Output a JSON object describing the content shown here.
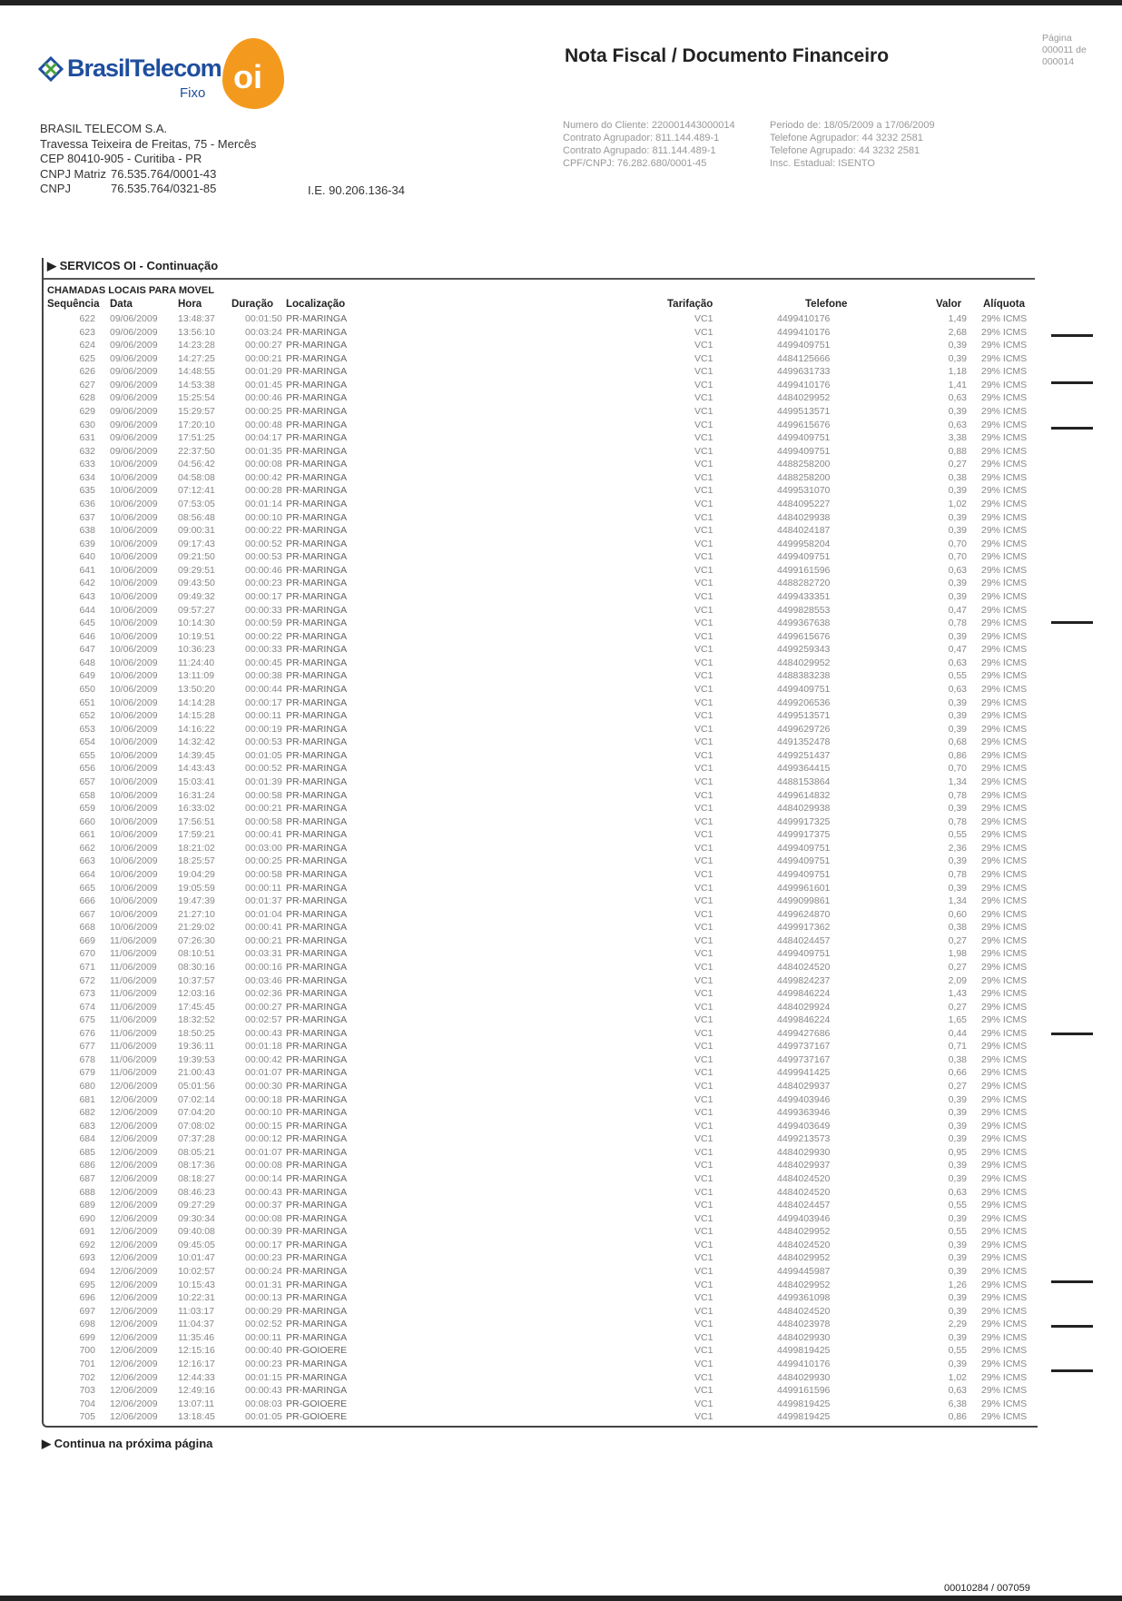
{
  "header": {
    "logo_brand": "BrasilTelecom",
    "logo_sub": "Fixo",
    "logo_oi": "oi",
    "title": "Nota Fiscal / Documento Financeiro",
    "page_label": "Página",
    "page_value": "000011 de 000014"
  },
  "company": {
    "name": "BRASIL TELECOM S.A.",
    "address": "Travessa Teixeira de Freitas, 75 - Mercês",
    "cep": "CEP 80410-905 - Curitiba - PR",
    "cnpj_matriz_label": "CNPJ Matriz",
    "cnpj_matriz": "76.535.764/0001-43",
    "cnpj_label": "CNPJ",
    "cnpj": "76.535.764/0321-85",
    "ie": "I.E. 90.206.136-34"
  },
  "client_info": {
    "numero_cliente": "Numero do Cliente: 220001443000014",
    "contrato_agrupador": "Contrato Agrupador: 811.144.489-1",
    "contrato_agrupado": "Contrato Agrupado: 811.144.489-1",
    "cpf_cnpj": "CPF/CNPJ: 76.282.680/0001-45",
    "periodo": "Periodo de: 18/05/2009 a 17/06/2009",
    "telefone_agrupador": "Telefone Agrupador: 44 3232 2581",
    "telefone_agrupado": "Telefone Agrupado: 44 3232 2581",
    "insc_estadual": "Insc. Estadual: ISENTO"
  },
  "section": {
    "title": "▶ SERVICOS OI - Continuação",
    "subtitle": "CHAMADAS LOCAIS PARA MOVEL",
    "columns": [
      "Sequência",
      "Data",
      "Hora",
      "Duração",
      "Localização",
      "Tarifação",
      "Telefone",
      "Valor",
      "Alíquota"
    ],
    "rows": [
      [
        "622",
        "09/06/2009",
        "13:48:37",
        "00:01:50",
        "PR-MARINGA",
        "VC1",
        "4499410176",
        "1,49",
        "29% ICMS"
      ],
      [
        "623",
        "09/06/2009",
        "13:56:10",
        "00:03:24",
        "PR-MARINGA",
        "VC1",
        "4499410176",
        "2,68",
        "29% ICMS"
      ],
      [
        "624",
        "09/06/2009",
        "14:23:28",
        "00:00:27",
        "PR-MARINGA",
        "VC1",
        "4499409751",
        "0,39",
        "29% ICMS"
      ],
      [
        "625",
        "09/06/2009",
        "14:27:25",
        "00:00:21",
        "PR-MARINGA",
        "VC1",
        "4484125666",
        "0,39",
        "29% ICMS"
      ],
      [
        "626",
        "09/06/2009",
        "14:48:55",
        "00:01:29",
        "PR-MARINGA",
        "VC1",
        "4499631733",
        "1,18",
        "29% ICMS"
      ],
      [
        "627",
        "09/06/2009",
        "14:53:38",
        "00:01:45",
        "PR-MARINGA",
        "VC1",
        "4499410176",
        "1,41",
        "29% ICMS"
      ],
      [
        "628",
        "09/06/2009",
        "15:25:54",
        "00:00:46",
        "PR-MARINGA",
        "VC1",
        "4484029952",
        "0,63",
        "29% ICMS"
      ],
      [
        "629",
        "09/06/2009",
        "15:29:57",
        "00:00:25",
        "PR-MARINGA",
        "VC1",
        "4499513571",
        "0,39",
        "29% ICMS"
      ],
      [
        "630",
        "09/06/2009",
        "17:20:10",
        "00:00:48",
        "PR-MARINGA",
        "VC1",
        "4499615676",
        "0,63",
        "29% ICMS"
      ],
      [
        "631",
        "09/06/2009",
        "17:51:25",
        "00:04:17",
        "PR-MARINGA",
        "VC1",
        "4499409751",
        "3,38",
        "29% ICMS"
      ],
      [
        "632",
        "09/06/2009",
        "22:37:50",
        "00:01:35",
        "PR-MARINGA",
        "VC1",
        "4499409751",
        "0,88",
        "29% ICMS"
      ],
      [
        "633",
        "10/06/2009",
        "04:56:42",
        "00:00:08",
        "PR-MARINGA",
        "VC1",
        "4488258200",
        "0,27",
        "29% ICMS"
      ],
      [
        "634",
        "10/06/2009",
        "04:58:08",
        "00:00:42",
        "PR-MARINGA",
        "VC1",
        "4488258200",
        "0,38",
        "29% ICMS"
      ],
      [
        "635",
        "10/06/2009",
        "07:12:41",
        "00:00:28",
        "PR-MARINGA",
        "VC1",
        "4499531070",
        "0,39",
        "29% ICMS"
      ],
      [
        "636",
        "10/06/2009",
        "07:53:05",
        "00:01:14",
        "PR-MARINGA",
        "VC1",
        "4484095227",
        "1,02",
        "29% ICMS"
      ],
      [
        "637",
        "10/06/2009",
        "08:56:48",
        "00:00:10",
        "PR-MARINGA",
        "VC1",
        "4484029938",
        "0,39",
        "29% ICMS"
      ],
      [
        "638",
        "10/06/2009",
        "09:00:31",
        "00:00:22",
        "PR-MARINGA",
        "VC1",
        "4484024187",
        "0,39",
        "29% ICMS"
      ],
      [
        "639",
        "10/06/2009",
        "09:17:43",
        "00:00:52",
        "PR-MARINGA",
        "VC1",
        "4499958204",
        "0,70",
        "29% ICMS"
      ],
      [
        "640",
        "10/06/2009",
        "09:21:50",
        "00:00:53",
        "PR-MARINGA",
        "VC1",
        "4499409751",
        "0,70",
        "29% ICMS"
      ],
      [
        "641",
        "10/06/2009",
        "09:29:51",
        "00:00:46",
        "PR-MARINGA",
        "VC1",
        "4499161596",
        "0,63",
        "29% ICMS"
      ],
      [
        "642",
        "10/06/2009",
        "09:43:50",
        "00:00:23",
        "PR-MARINGA",
        "VC1",
        "4488282720",
        "0,39",
        "29% ICMS"
      ],
      [
        "643",
        "10/06/2009",
        "09:49:32",
        "00:00:17",
        "PR-MARINGA",
        "VC1",
        "4499433351",
        "0,39",
        "29% ICMS"
      ],
      [
        "644",
        "10/06/2009",
        "09:57:27",
        "00:00:33",
        "PR-MARINGA",
        "VC1",
        "4499828553",
        "0,47",
        "29% ICMS"
      ],
      [
        "645",
        "10/06/2009",
        "10:14:30",
        "00:00:59",
        "PR-MARINGA",
        "VC1",
        "4499367638",
        "0,78",
        "29% ICMS"
      ],
      [
        "646",
        "10/06/2009",
        "10:19:51",
        "00:00:22",
        "PR-MARINGA",
        "VC1",
        "4499615676",
        "0,39",
        "29% ICMS"
      ],
      [
        "647",
        "10/06/2009",
        "10:36:23",
        "00:00:33",
        "PR-MARINGA",
        "VC1",
        "4499259343",
        "0,47",
        "29% ICMS"
      ],
      [
        "648",
        "10/06/2009",
        "11:24:40",
        "00:00:45",
        "PR-MARINGA",
        "VC1",
        "4484029952",
        "0,63",
        "29% ICMS"
      ],
      [
        "649",
        "10/06/2009",
        "13:11:09",
        "00:00:38",
        "PR-MARINGA",
        "VC1",
        "4488383238",
        "0,55",
        "29% ICMS"
      ],
      [
        "650",
        "10/06/2009",
        "13:50:20",
        "00:00:44",
        "PR-MARINGA",
        "VC1",
        "4499409751",
        "0,63",
        "29% ICMS"
      ],
      [
        "651",
        "10/06/2009",
        "14:14:28",
        "00:00:17",
        "PR-MARINGA",
        "VC1",
        "4499206536",
        "0,39",
        "29% ICMS"
      ],
      [
        "652",
        "10/06/2009",
        "14:15:28",
        "00:00:11",
        "PR-MARINGA",
        "VC1",
        "4499513571",
        "0,39",
        "29% ICMS"
      ],
      [
        "653",
        "10/06/2009",
        "14:16:22",
        "00:00:19",
        "PR-MARINGA",
        "VC1",
        "4499629726",
        "0,39",
        "29% ICMS"
      ],
      [
        "654",
        "10/06/2009",
        "14:32:42",
        "00:00:53",
        "PR-MARINGA",
        "VC1",
        "4491352478",
        "0,68",
        "29% ICMS"
      ],
      [
        "655",
        "10/06/2009",
        "14:39:45",
        "00:01:05",
        "PR-MARINGA",
        "VC1",
        "4499251437",
        "0,86",
        "29% ICMS"
      ],
      [
        "656",
        "10/06/2009",
        "14:43:43",
        "00:00:52",
        "PR-MARINGA",
        "VC1",
        "4499364415",
        "0,70",
        "29% ICMS"
      ],
      [
        "657",
        "10/06/2009",
        "15:03:41",
        "00:01:39",
        "PR-MARINGA",
        "VC1",
        "4488153864",
        "1,34",
        "29% ICMS"
      ],
      [
        "658",
        "10/06/2009",
        "16:31:24",
        "00:00:58",
        "PR-MARINGA",
        "VC1",
        "4499614832",
        "0,78",
        "29% ICMS"
      ],
      [
        "659",
        "10/06/2009",
        "16:33:02",
        "00:00:21",
        "PR-MARINGA",
        "VC1",
        "4484029938",
        "0,39",
        "29% ICMS"
      ],
      [
        "660",
        "10/06/2009",
        "17:56:51",
        "00:00:58",
        "PR-MARINGA",
        "VC1",
        "4499917325",
        "0,78",
        "29% ICMS"
      ],
      [
        "661",
        "10/06/2009",
        "17:59:21",
        "00:00:41",
        "PR-MARINGA",
        "VC1",
        "4499917375",
        "0,55",
        "29% ICMS"
      ],
      [
        "662",
        "10/06/2009",
        "18:21:02",
        "00:03:00",
        "PR-MARINGA",
        "VC1",
        "4499409751",
        "2,36",
        "29% ICMS"
      ],
      [
        "663",
        "10/06/2009",
        "18:25:57",
        "00:00:25",
        "PR-MARINGA",
        "VC1",
        "4499409751",
        "0,39",
        "29% ICMS"
      ],
      [
        "664",
        "10/06/2009",
        "19:04:29",
        "00:00:58",
        "PR-MARINGA",
        "VC1",
        "4499409751",
        "0,78",
        "29% ICMS"
      ],
      [
        "665",
        "10/06/2009",
        "19:05:59",
        "00:00:11",
        "PR-MARINGA",
        "VC1",
        "4499961601",
        "0,39",
        "29% ICMS"
      ],
      [
        "666",
        "10/06/2009",
        "19:47:39",
        "00:01:37",
        "PR-MARINGA",
        "VC1",
        "4499099861",
        "1,34",
        "29% ICMS"
      ],
      [
        "667",
        "10/06/2009",
        "21:27:10",
        "00:01:04",
        "PR-MARINGA",
        "VC1",
        "4499624870",
        "0,60",
        "29% ICMS"
      ],
      [
        "668",
        "10/06/2009",
        "21:29:02",
        "00:00:41",
        "PR-MARINGA",
        "VC1",
        "4499917362",
        "0,38",
        "29% ICMS"
      ],
      [
        "669",
        "11/06/2009",
        "07:26:30",
        "00:00:21",
        "PR-MARINGA",
        "VC1",
        "4484024457",
        "0,27",
        "29% ICMS"
      ],
      [
        "670",
        "11/06/2009",
        "08:10:51",
        "00:03:31",
        "PR-MARINGA",
        "VC1",
        "4499409751",
        "1,98",
        "29% ICMS"
      ],
      [
        "671",
        "11/06/2009",
        "08:30:16",
        "00:00:16",
        "PR-MARINGA",
        "VC1",
        "4484024520",
        "0,27",
        "29% ICMS"
      ],
      [
        "672",
        "11/06/2009",
        "10:37:57",
        "00:03:46",
        "PR-MARINGA",
        "VC1",
        "4499824237",
        "2,09",
        "29% ICMS"
      ],
      [
        "673",
        "11/06/2009",
        "12:03:16",
        "00:02:36",
        "PR-MARINGA",
        "VC1",
        "4499846224",
        "1,43",
        "29% ICMS"
      ],
      [
        "674",
        "11/06/2009",
        "17:45:45",
        "00:00:27",
        "PR-MARINGA",
        "VC1",
        "4484029924",
        "0,27",
        "29% ICMS"
      ],
      [
        "675",
        "11/06/2009",
        "18:32:52",
        "00:02:57",
        "PR-MARINGA",
        "VC1",
        "4499846224",
        "1,65",
        "29% ICMS"
      ],
      [
        "676",
        "11/06/2009",
        "18:50:25",
        "00:00:43",
        "PR-MARINGA",
        "VC1",
        "4499427686",
        "0,44",
        "29% ICMS"
      ],
      [
        "677",
        "11/06/2009",
        "19:36:11",
        "00:01:18",
        "PR-MARINGA",
        "VC1",
        "4499737167",
        "0,71",
        "29% ICMS"
      ],
      [
        "678",
        "11/06/2009",
        "19:39:53",
        "00:00:42",
        "PR-MARINGA",
        "VC1",
        "4499737167",
        "0,38",
        "29% ICMS"
      ],
      [
        "679",
        "11/06/2009",
        "21:00:43",
        "00:01:07",
        "PR-MARINGA",
        "VC1",
        "4499941425",
        "0,66",
        "29% ICMS"
      ],
      [
        "680",
        "12/06/2009",
        "05:01:56",
        "00:00:30",
        "PR-MARINGA",
        "VC1",
        "4484029937",
        "0,27",
        "29% ICMS"
      ],
      [
        "681",
        "12/06/2009",
        "07:02:14",
        "00:00:18",
        "PR-MARINGA",
        "VC1",
        "4499403946",
        "0,39",
        "29% ICMS"
      ],
      [
        "682",
        "12/06/2009",
        "07:04:20",
        "00:00:10",
        "PR-MARINGA",
        "VC1",
        "4499363946",
        "0,39",
        "29% ICMS"
      ],
      [
        "683",
        "12/06/2009",
        "07:08:02",
        "00:00:15",
        "PR-MARINGA",
        "VC1",
        "4499403649",
        "0,39",
        "29% ICMS"
      ],
      [
        "684",
        "12/06/2009",
        "07:37:28",
        "00:00:12",
        "PR-MARINGA",
        "VC1",
        "4499213573",
        "0,39",
        "29% ICMS"
      ],
      [
        "685",
        "12/06/2009",
        "08:05:21",
        "00:01:07",
        "PR-MARINGA",
        "VC1",
        "4484029930",
        "0,95",
        "29% ICMS"
      ],
      [
        "686",
        "12/06/2009",
        "08:17:36",
        "00:00:08",
        "PR-MARINGA",
        "VC1",
        "4484029937",
        "0,39",
        "29% ICMS"
      ],
      [
        "687",
        "12/06/2009",
        "08:18:27",
        "00:00:14",
        "PR-MARINGA",
        "VC1",
        "4484024520",
        "0,39",
        "29% ICMS"
      ],
      [
        "688",
        "12/06/2009",
        "08:46:23",
        "00:00:43",
        "PR-MARINGA",
        "VC1",
        "4484024520",
        "0,63",
        "29% ICMS"
      ],
      [
        "689",
        "12/06/2009",
        "09:27:29",
        "00:00:37",
        "PR-MARINGA",
        "VC1",
        "4484024457",
        "0,55",
        "29% ICMS"
      ],
      [
        "690",
        "12/06/2009",
        "09:30:34",
        "00:00:08",
        "PR-MARINGA",
        "VC1",
        "4499403946",
        "0,39",
        "29% ICMS"
      ],
      [
        "691",
        "12/06/2009",
        "09:40:08",
        "00:00:39",
        "PR-MARINGA",
        "VC1",
        "4484029952",
        "0,55",
        "29% ICMS"
      ],
      [
        "692",
        "12/06/2009",
        "09:45:05",
        "00:00:17",
        "PR-MARINGA",
        "VC1",
        "4484024520",
        "0,39",
        "29% ICMS"
      ],
      [
        "693",
        "12/06/2009",
        "10:01:47",
        "00:00:23",
        "PR-MARINGA",
        "VC1",
        "4484029952",
        "0,39",
        "29% ICMS"
      ],
      [
        "694",
        "12/06/2009",
        "10:02:57",
        "00:00:24",
        "PR-MARINGA",
        "VC1",
        "4499445987",
        "0,39",
        "29% ICMS"
      ],
      [
        "695",
        "12/06/2009",
        "10:15:43",
        "00:01:31",
        "PR-MARINGA",
        "VC1",
        "4484029952",
        "1,26",
        "29% ICMS"
      ],
      [
        "696",
        "12/06/2009",
        "10:22:31",
        "00:00:13",
        "PR-MARINGA",
        "VC1",
        "4499361098",
        "0,39",
        "29% ICMS"
      ],
      [
        "697",
        "12/06/2009",
        "11:03:17",
        "00:00:29",
        "PR-MARINGA",
        "VC1",
        "4484024520",
        "0,39",
        "29% ICMS"
      ],
      [
        "698",
        "12/06/2009",
        "11:04:37",
        "00:02:52",
        "PR-MARINGA",
        "VC1",
        "4484023978",
        "2,29",
        "29% ICMS"
      ],
      [
        "699",
        "12/06/2009",
        "11:35:46",
        "00:00:11",
        "PR-MARINGA",
        "VC1",
        "4484029930",
        "0,39",
        "29% ICMS"
      ],
      [
        "700",
        "12/06/2009",
        "12:15:16",
        "00:00:40",
        "PR-GOIOERE",
        "VC1",
        "4499819425",
        "0,55",
        "29% ICMS"
      ],
      [
        "701",
        "12/06/2009",
        "12:16:17",
        "00:00:23",
        "PR-MARINGA",
        "VC1",
        "4499410176",
        "0,39",
        "29% ICMS"
      ],
      [
        "702",
        "12/06/2009",
        "12:44:33",
        "00:01:15",
        "PR-MARINGA",
        "VC1",
        "4484029930",
        "1,02",
        "29% ICMS"
      ],
      [
        "703",
        "12/06/2009",
        "12:49:16",
        "00:00:43",
        "PR-MARINGA",
        "VC1",
        "4499161596",
        "0,63",
        "29% ICMS"
      ],
      [
        "704",
        "12/06/2009",
        "13:07:11",
        "00:08:03",
        "PR-GOIOERE",
        "VC1",
        "4499819425",
        "6,38",
        "29% ICMS"
      ],
      [
        "705",
        "12/06/2009",
        "13:18:45",
        "00:01:05",
        "PR-GOIOERE",
        "VC1",
        "4499819425",
        "0,86",
        "29% ICMS"
      ]
    ]
  },
  "footer": {
    "continua": "▶ Continua na próxima página",
    "doc_number": "00010284 / 007059"
  },
  "colors": {
    "brand_blue": "#1f4e9e",
    "oi_orange": "#f39a1e"
  }
}
